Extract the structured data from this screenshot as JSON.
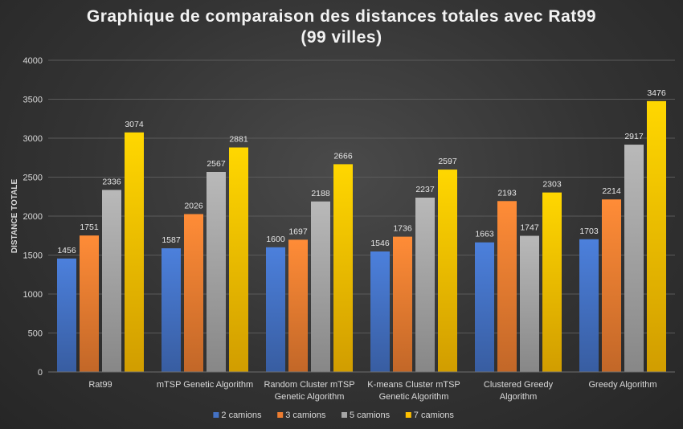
{
  "chart_data": {
    "type": "bar",
    "title": "Graphique de comparaison des distances totales avec Rat99",
    "subtitle": "(99 villes)",
    "xlabel": "",
    "ylabel": "DISTANCE TOTALE",
    "ylim": [
      0,
      4000
    ],
    "yticks": [
      0,
      500,
      1000,
      1500,
      2000,
      2500,
      3000,
      3500,
      4000
    ],
    "grid": true,
    "legend_position": "bottom",
    "categories": [
      [
        "Rat99"
      ],
      [
        "mTSP Genetic Algorithm"
      ],
      [
        "Random Cluster mTSP",
        "Genetic Algorithm"
      ],
      [
        "K-means Cluster mTSP",
        "Genetic Algorithm"
      ],
      [
        "Clustered Greedy",
        "Algorithm"
      ],
      [
        "Greedy Algorithm"
      ]
    ],
    "series": [
      {
        "name": "2 camions",
        "color": "#4472c4",
        "values": [
          1456,
          1587,
          1600,
          1546,
          1663,
          1703
        ]
      },
      {
        "name": "3 camions",
        "color": "#ed7d31",
        "values": [
          1751,
          2026,
          1697,
          1736,
          2193,
          2214
        ]
      },
      {
        "name": "5 camions",
        "color": "#a5a5a5",
        "values": [
          2336,
          2567,
          2188,
          2237,
          1747,
          2917
        ]
      },
      {
        "name": "7 camions",
        "color": "#ffc000",
        "values": [
          3074,
          2881,
          2666,
          2597,
          2303,
          3476
        ]
      }
    ]
  }
}
